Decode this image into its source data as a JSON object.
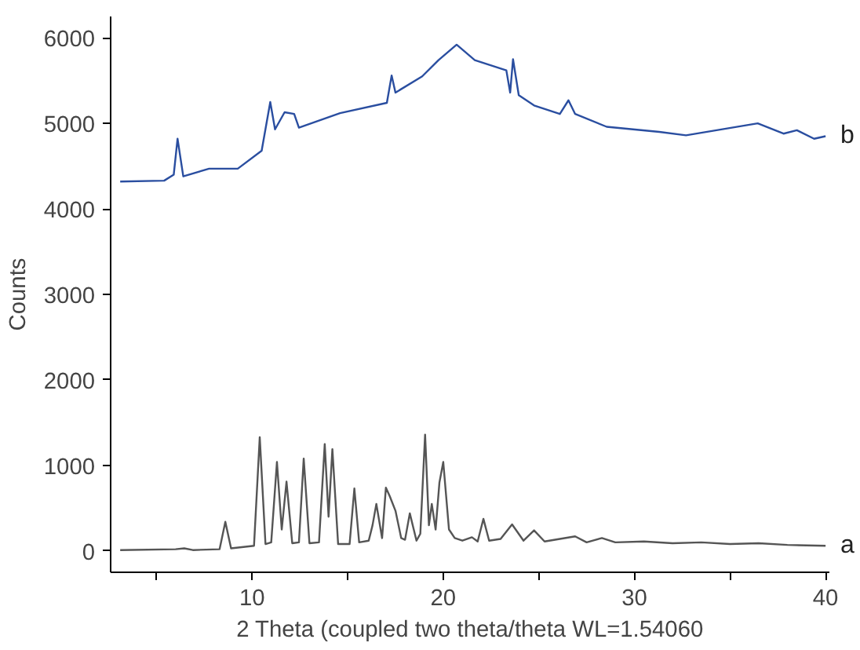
{
  "chart_data": {
    "type": "line",
    "xlabel": "2 Theta (coupled two theta/theta WL=1.54060",
    "ylabel": "Counts",
    "xlim": [
      2.6,
      40.2
    ],
    "ylim": [
      -250,
      6250
    ],
    "xticks": [
      {
        "value": 5,
        "label": null
      },
      10,
      {
        "value": 15,
        "label": null
      },
      20,
      {
        "value": 25,
        "label": null
      },
      30,
      {
        "value": 35,
        "label": null
      },
      40
    ],
    "yticks": [
      0,
      1000,
      2000,
      3000,
      4000,
      5000,
      6000
    ],
    "grid": false,
    "marker": "none",
    "line_style": "solid",
    "series": [
      {
        "name": "a",
        "color": "#555555",
        "x": [
          3.1,
          6.0,
          6.45,
          6.9,
          8.3,
          8.6,
          8.9,
          10.1,
          10.4,
          10.7,
          11.0,
          11.3,
          11.55,
          11.8,
          12.1,
          12.45,
          12.7,
          13.0,
          13.5,
          13.8,
          14.0,
          14.2,
          14.5,
          15.1,
          15.35,
          15.6,
          16.1,
          16.3,
          16.5,
          16.8,
          17.0,
          17.2,
          17.5,
          17.8,
          18.0,
          18.25,
          18.6,
          18.8,
          19.05,
          19.25,
          19.4,
          19.6,
          19.8,
          20.0,
          20.3,
          20.6,
          21.0,
          21.5,
          21.8,
          22.1,
          22.4,
          23.0,
          23.6,
          24.2,
          24.75,
          25.3,
          26.9,
          27.5,
          28.3,
          29.0,
          30.5,
          32.0,
          33.5,
          35.0,
          36.5,
          38.0,
          40.0
        ],
        "values": [
          10,
          20,
          30,
          10,
          20,
          340,
          30,
          60,
          1330,
          80,
          100,
          1040,
          250,
          810,
          90,
          100,
          1080,
          90,
          100,
          1250,
          400,
          1190,
          80,
          80,
          730,
          100,
          120,
          300,
          550,
          150,
          740,
          640,
          470,
          150,
          130,
          440,
          120,
          200,
          1360,
          300,
          550,
          250,
          800,
          1040,
          250,
          150,
          120,
          160,
          110,
          375,
          120,
          140,
          310,
          120,
          240,
          110,
          170,
          100,
          150,
          100,
          110,
          90,
          100,
          80,
          90,
          70,
          60
        ]
      },
      {
        "name": "b",
        "color": "#2a4ea0",
        "x": [
          3.1,
          5.4,
          5.9,
          6.1,
          6.4,
          7.75,
          9.25,
          10.5,
          10.95,
          11.2,
          11.7,
          12.2,
          12.45,
          14.6,
          17.05,
          17.3,
          17.5,
          18.9,
          19.75,
          20.7,
          21.65,
          23.3,
          23.5,
          23.65,
          23.95,
          24.75,
          26.1,
          26.55,
          26.9,
          28.55,
          31.3,
          32.7,
          36.45,
          37.8,
          38.5,
          39.4,
          40.0
        ],
        "values": [
          4320,
          4330,
          4400,
          4820,
          4380,
          4470,
          4470,
          4680,
          5250,
          4930,
          5130,
          5110,
          4950,
          5120,
          5240,
          5560,
          5360,
          5550,
          5740,
          5920,
          5740,
          5620,
          5360,
          5750,
          5330,
          5210,
          5110,
          5270,
          5110,
          4960,
          4900,
          4860,
          5000,
          4880,
          4920,
          4820,
          4850
        ]
      }
    ]
  }
}
